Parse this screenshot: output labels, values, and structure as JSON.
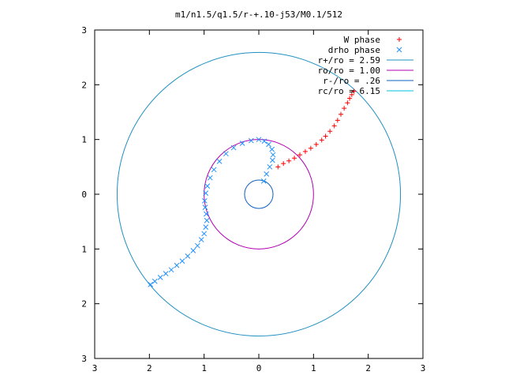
{
  "chart_data": {
    "type": "scatter",
    "title": "m1/n1.5/q1.5/r-+.10-j53/M0.1/512",
    "xlim": [
      -3,
      3
    ],
    "ylim": [
      -3,
      3
    ],
    "x_ticks": [
      -3,
      -2,
      -1,
      0,
      1,
      2,
      3
    ],
    "y_ticks": [
      -3,
      -2,
      -1,
      0,
      1,
      2,
      3
    ],
    "x_tick_labels": [
      "3",
      "2",
      "1",
      "0",
      "1",
      "2",
      "3"
    ],
    "y_tick_labels": [
      "3",
      "2",
      "1",
      "0",
      "1",
      "2",
      "3"
    ],
    "grid": false,
    "legend_position": "top-right",
    "legend": [
      {
        "label": "W phase",
        "kind": "marker",
        "marker": "+",
        "color": "#ff0000"
      },
      {
        "label": "drho phase",
        "kind": "marker",
        "marker": "x",
        "color": "#1e90ff"
      },
      {
        "label": "r+/ro = 2.59",
        "kind": "line",
        "color": "#2090c0"
      },
      {
        "label": "ro/ro = 1.00",
        "kind": "line",
        "color": "#b000b0"
      },
      {
        "label": "r-/ro = .26",
        "kind": "line",
        "color": "#1060c0"
      },
      {
        "label": "rc/ro = 6.15",
        "kind": "line",
        "color": "#00c0e0"
      }
    ],
    "circles": [
      {
        "label": "r+/ro = 2.59",
        "r": 2.59,
        "color": "#2090c0"
      },
      {
        "label": "ro/ro = 1.00",
        "r": 1.0,
        "color": "#b000b0"
      },
      {
        "label": "r-/ro = .26",
        "r": 0.26,
        "color": "#1060c0"
      }
    ],
    "series": [
      {
        "name": "W phase",
        "marker": "+",
        "color": "#ff0000",
        "x": [
          0.35,
          0.45,
          0.55,
          0.65,
          0.75,
          0.85,
          0.95,
          1.05,
          1.15,
          1.22,
          1.3,
          1.38,
          1.44,
          1.5,
          1.56,
          1.62,
          1.66,
          1.7,
          1.74
        ],
        "y": [
          0.5,
          0.56,
          0.61,
          0.66,
          0.72,
          0.78,
          0.84,
          0.91,
          0.99,
          1.06,
          1.15,
          1.25,
          1.35,
          1.46,
          1.57,
          1.67,
          1.75,
          1.82,
          1.88
        ]
      },
      {
        "name": "drho phase",
        "marker": "x",
        "color": "#1e90ff",
        "x": [
          -1.98,
          -1.9,
          -1.8,
          -1.7,
          -1.6,
          -1.5,
          -1.4,
          -1.3,
          -1.2,
          -1.12,
          -1.05,
          -1.0,
          -0.97,
          -0.95,
          -0.96,
          -0.98,
          -0.99,
          -0.97,
          -0.94,
          -0.89,
          -0.82,
          -0.72,
          -0.6,
          -0.46,
          -0.3,
          -0.14,
          0.0,
          0.1,
          0.18,
          0.24,
          0.26,
          0.25,
          0.2,
          0.14,
          0.09
        ],
        "y": [
          -1.65,
          -1.59,
          -1.52,
          -1.45,
          -1.38,
          -1.3,
          -1.22,
          -1.13,
          -1.03,
          -0.94,
          -0.83,
          -0.72,
          -0.6,
          -0.48,
          -0.36,
          -0.24,
          -0.12,
          0.02,
          0.15,
          0.3,
          0.45,
          0.6,
          0.74,
          0.85,
          0.93,
          0.98,
          1.0,
          0.97,
          0.91,
          0.82,
          0.72,
          0.62,
          0.5,
          0.37,
          0.24
        ]
      }
    ]
  }
}
